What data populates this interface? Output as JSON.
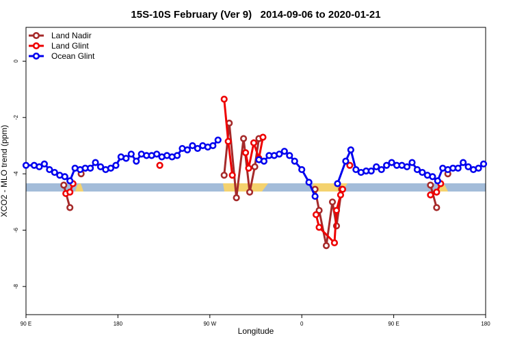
{
  "chart_data": {
    "type": "line",
    "title": "15S-10S February (Ver 9)   2014-09-06 to 2020-01-21",
    "x_label": "Longitude",
    "y_label": "XCO2 - MLO trend (ppm)",
    "xlim": [
      90,
      540
    ],
    "ylim": [
      -9,
      1.2
    ],
    "xticks": [
      {
        "value": 90,
        "label": "90 E"
      },
      180,
      {
        "value": 270,
        "label": "90 W"
      },
      {
        "value": 360,
        "label": "0"
      },
      {
        "value": 450,
        "label": "90 E"
      },
      {
        "value": 540,
        "label": "180"
      }
    ],
    "yticks": [
      0,
      -2,
      -4,
      -6,
      -8
    ],
    "legend": "top-left",
    "series": [
      {
        "name": "Land Nadir",
        "color": "#a52a2a",
        "x": [
          127,
          133,
          138,
          144,
          279,
          284,
          289,
          296,
          303,
          309,
          314,
          318,
          368,
          373,
          377,
          384,
          390,
          394,
          399,
          480,
          486,
          492,
          497,
          503
        ],
        "values": [
          -4.4,
          -5.2,
          null,
          -4.0,
          null,
          -4.05,
          -2.2,
          -4.85,
          -2.75,
          -4.65,
          -3.75,
          -2.75,
          null,
          -4.55,
          -5.3,
          -6.55,
          -5.0,
          -5.85,
          -4.55,
          null,
          -4.4,
          -5.2,
          null,
          -4.0
        ]
      },
      {
        "name": "Land Glint",
        "color": "#ee0000",
        "x": [
          129,
          133,
          136,
          180,
          221,
          250,
          284,
          288,
          292,
          300,
          305,
          308,
          313,
          318,
          322,
          350,
          374,
          377,
          392,
          394,
          398,
          400,
          404,
          407,
          450,
          486,
          492,
          496
        ],
        "values": [
          -4.7,
          -4.65,
          -4.35,
          null,
          -3.7,
          null,
          -1.35,
          -2.85,
          -4.05,
          null,
          -3.25,
          -3.8,
          -2.9,
          -3.45,
          -2.7,
          null,
          -5.45,
          -5.9,
          -6.45,
          -5.3,
          -4.75,
          -4.55,
          null,
          -3.7,
          null,
          -4.75,
          -4.65,
          -4.35
        ]
      },
      {
        "name": "Ocean Glint",
        "color": "#0000ee",
        "x": [
          90,
          98,
          103,
          108,
          113,
          118,
          123,
          128,
          133,
          138,
          143,
          148,
          153,
          158,
          163,
          168,
          173,
          178,
          183,
          188,
          193,
          198,
          203,
          208,
          213,
          218,
          223,
          228,
          233,
          238,
          243,
          248,
          253,
          258,
          263,
          268,
          273,
          278,
          300,
          318,
          323,
          328,
          333,
          338,
          343,
          348,
          353,
          360,
          367,
          373,
          385,
          395,
          403,
          408,
          413,
          418,
          423,
          428,
          433,
          438,
          443,
          448,
          453,
          458,
          463,
          468,
          473,
          478,
          483,
          488,
          493,
          498,
          503,
          508,
          513,
          518,
          523,
          528,
          533,
          538
        ],
        "values": [
          -3.7,
          -3.7,
          -3.75,
          -3.65,
          -3.85,
          -3.95,
          -4.05,
          -4.1,
          -4.25,
          -3.8,
          -3.85,
          -3.8,
          -3.8,
          -3.6,
          -3.75,
          -3.85,
          -3.8,
          -3.7,
          -3.4,
          -3.45,
          -3.3,
          -3.55,
          -3.3,
          -3.35,
          -3.35,
          -3.3,
          -3.4,
          -3.35,
          -3.4,
          -3.35,
          -3.1,
          -3.15,
          -3.0,
          -3.1,
          -3.0,
          -3.05,
          -3.0,
          -2.8,
          null,
          -3.5,
          -3.55,
          -3.35,
          -3.35,
          -3.3,
          -3.2,
          -3.35,
          -3.55,
          -3.85,
          -4.3,
          -4.8,
          null,
          -4.35,
          -3.55,
          -3.15,
          -3.85,
          -3.95,
          -3.9,
          -3.9,
          -3.75,
          -3.85,
          -3.7,
          -3.6,
          -3.7,
          -3.7,
          -3.75,
          -3.6,
          -3.85,
          -3.95,
          -4.05,
          -4.1,
          -4.25,
          -3.8,
          -3.85,
          -3.8,
          -3.8,
          -3.6,
          -3.75,
          -3.85,
          -3.8,
          -3.65
        ]
      }
    ]
  }
}
